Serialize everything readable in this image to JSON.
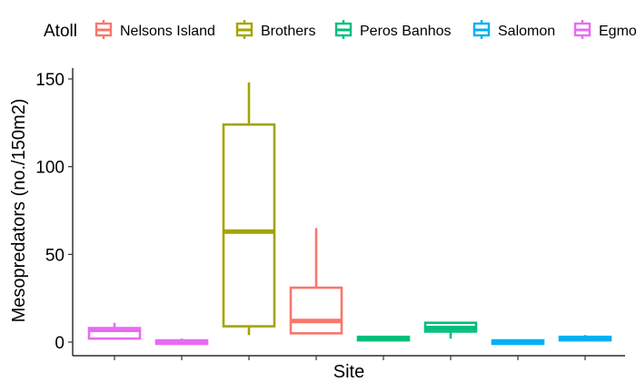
{
  "chart_data": {
    "type": "boxplot",
    "title": "",
    "xlabel": "Site",
    "ylabel": "Mesopredators (no./150m2)",
    "ylim": [
      -5,
      155
    ],
    "yticks": [
      0,
      50,
      100,
      150
    ],
    "ytick_labels": [
      "0",
      "50",
      "100",
      "150"
    ],
    "grid": false,
    "legend": {
      "title": "Atoll",
      "position": "top",
      "entries": [
        {
          "name": "Nelsons Island",
          "color": "#F8766D"
        },
        {
          "name": "Brothers",
          "color": "#A3A500"
        },
        {
          "name": "Peros Banhos",
          "color": "#00BF7D"
        },
        {
          "name": "Salomon",
          "color": "#00B0F6"
        },
        {
          "name": "Egmont",
          "color": "#E76BF3"
        }
      ]
    },
    "boxes": [
      {
        "series": "Egmont",
        "color": "#E76BF3",
        "min": 2,
        "q1": 2,
        "median": 7,
        "q3": 8,
        "max": 11
      },
      {
        "series": "Egmont",
        "color": "#E76BF3",
        "min": -1,
        "q1": -1,
        "median": 0,
        "q3": 1,
        "max": 2
      },
      {
        "series": "Brothers",
        "color": "#A3A500",
        "min": 4,
        "q1": 9,
        "median": 63,
        "q3": 124,
        "max": 148
      },
      {
        "series": "Nelsons Island",
        "color": "#F8766D",
        "min": 5,
        "q1": 5,
        "median": 12,
        "q3": 31,
        "max": 65
      },
      {
        "series": "Peros Banhos",
        "color": "#00BF7D",
        "min": 1,
        "q1": 1,
        "median": 2,
        "q3": 3,
        "max": 3
      },
      {
        "series": "Peros Banhos",
        "color": "#00BF7D",
        "min": 2,
        "q1": 6,
        "median": 8,
        "q3": 11,
        "max": 11
      },
      {
        "series": "Salomon",
        "color": "#00B0F6",
        "min": -1,
        "q1": -1,
        "median": 0,
        "q3": 1,
        "max": 1
      },
      {
        "series": "Salomon",
        "color": "#00B0F6",
        "min": 1,
        "q1": 1,
        "median": 2,
        "q3": 3,
        "max": 4
      }
    ]
  }
}
